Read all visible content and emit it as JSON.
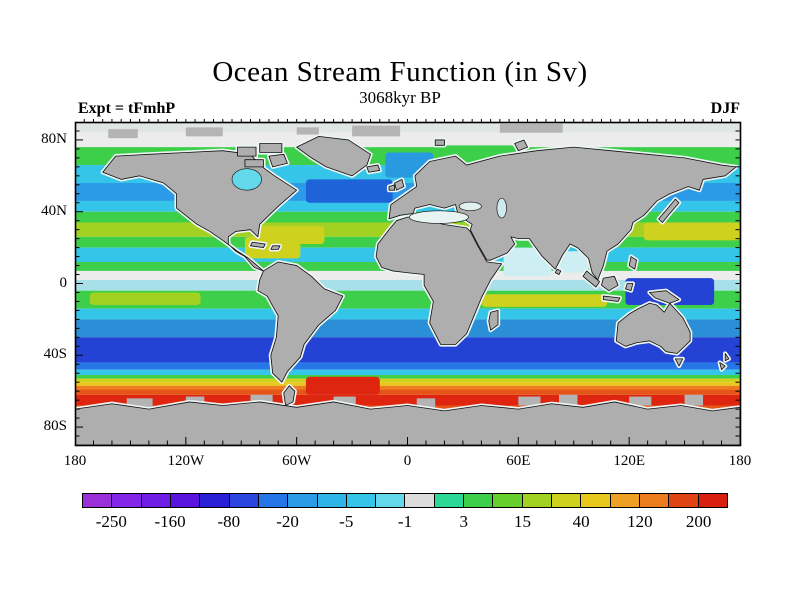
{
  "header": {
    "title": "Ocean Stream Function (in Sv)",
    "subtitle": "3068kyr BP",
    "experiment": "Expt = tFmhP",
    "season": "DJF"
  },
  "axes": {
    "x_ticks": [
      {
        "label": "180",
        "lon": -180
      },
      {
        "label": "120W",
        "lon": -120
      },
      {
        "label": "60W",
        "lon": -60
      },
      {
        "label": "0",
        "lon": 0
      },
      {
        "label": "60E",
        "lon": 60
      },
      {
        "label": "120E",
        "lon": 120
      },
      {
        "label": "180",
        "lon": 180
      }
    ],
    "y_ticks": [
      {
        "label": "80N",
        "lat": 80
      },
      {
        "label": "40N",
        "lat": 40
      },
      {
        "label": "0",
        "lat": 0
      },
      {
        "label": "40S",
        "lat": -40
      },
      {
        "label": "80S",
        "lat": -80
      }
    ]
  },
  "colorbar": {
    "labels": [
      "-250",
      "-160",
      "-80",
      "-20",
      "-5",
      "-1",
      "3",
      "15",
      "40",
      "120",
      "200"
    ],
    "colors": [
      "#9a30d8",
      "#8326e8",
      "#701de6",
      "#5a14e0",
      "#2b1fd8",
      "#2b46e0",
      "#2776e8",
      "#2b9be8",
      "#2fb4e8",
      "#35c5e8",
      "#62d8ea",
      "#dcdcdc",
      "#2bd896",
      "#3ecf4a",
      "#66cf2b",
      "#a3d122",
      "#cfd11f",
      "#e8c81d",
      "#eda024",
      "#ed7c1f",
      "#e04414",
      "#d92010"
    ]
  },
  "chart_data": {
    "type": "heatmap",
    "title": "Ocean Stream Function (in Sv)",
    "subtitle": "3068kyr BP",
    "experiment": "Expt = tFmhP",
    "season": "DJF",
    "units": "Sv",
    "projection": "equirectangular world map, land masked gray",
    "x_axis": {
      "tick_labels": [
        "180",
        "120W",
        "60W",
        "0",
        "60E",
        "120E",
        "180"
      ],
      "range_deg": [
        -180,
        180
      ]
    },
    "y_axis": {
      "tick_labels": [
        "80N",
        "40N",
        "0",
        "40S",
        "80S"
      ],
      "range_deg": [
        -90,
        90
      ]
    },
    "colorbar_values": [
      -250,
      -160,
      -80,
      -20,
      -5,
      -1,
      3,
      15,
      40,
      120,
      200
    ],
    "legend_position": "bottom",
    "grid": false,
    "ocean_bands": [
      {
        "from_lat": 90,
        "to_lat": 84,
        "color": "#e2e5e5",
        "approx_sv": "-1 to 1"
      },
      {
        "from_lat": 84,
        "to_lat": 76,
        "color": "#ececec",
        "approx_sv": "-1 to 1"
      },
      {
        "from_lat": 76,
        "to_lat": 66,
        "color": "#3ecf4a",
        "approx_sv": "3 to 15"
      },
      {
        "from_lat": 66,
        "to_lat": 56,
        "color": "#35c5e8",
        "approx_sv": "-5 to -2"
      },
      {
        "from_lat": 56,
        "to_lat": 46,
        "color": "#2b9be8",
        "approx_sv": "-10 to -5"
      },
      {
        "from_lat": 46,
        "to_lat": 40,
        "color": "#35c5e8",
        "approx_sv": "-5 to -2"
      },
      {
        "from_lat": 40,
        "to_lat": 34,
        "color": "#3ecf4a",
        "approx_sv": "3 to 15"
      },
      {
        "from_lat": 34,
        "to_lat": 26,
        "color": "#a3d122",
        "approx_sv": "25 to 40"
      },
      {
        "from_lat": 26,
        "to_lat": 20,
        "color": "#3ecf4a",
        "approx_sv": "3 to 15"
      },
      {
        "from_lat": 20,
        "to_lat": 12,
        "color": "#35c5e8",
        "approx_sv": "-5 to -2"
      },
      {
        "from_lat": 12,
        "to_lat": 7,
        "color": "#3ecf4a",
        "approx_sv": "3 to 15"
      },
      {
        "from_lat": 7,
        "to_lat": 2,
        "color": "#ececec",
        "approx_sv": "-1 to 1"
      },
      {
        "from_lat": 2,
        "to_lat": -4,
        "color": "#a8e0ea",
        "approx_sv": "-2 to -1"
      },
      {
        "from_lat": -4,
        "to_lat": -14,
        "color": "#3ecf4a",
        "approx_sv": "3 to 15"
      },
      {
        "from_lat": -14,
        "to_lat": -20,
        "color": "#35c5e8",
        "approx_sv": "-5 to -2"
      },
      {
        "from_lat": -20,
        "to_lat": -30,
        "color": "#2b8fd8",
        "approx_sv": "-20 to -10"
      },
      {
        "from_lat": -30,
        "to_lat": -44,
        "color": "#2443d4",
        "approx_sv": "-80 to -40"
      },
      {
        "from_lat": -44,
        "to_lat": -48,
        "color": "#2776e8",
        "approx_sv": "-20 to -10"
      },
      {
        "from_lat": -48,
        "to_lat": -51,
        "color": "#35c5e8",
        "approx_sv": "-5 to -2"
      },
      {
        "from_lat": -51,
        "to_lat": -53,
        "color": "#3ecf4a",
        "approx_sv": "3 to 15"
      },
      {
        "from_lat": -53,
        "to_lat": -55,
        "color": "#cfd11f",
        "approx_sv": "40 to 80"
      },
      {
        "from_lat": -55,
        "to_lat": -57,
        "color": "#e8c81d",
        "approx_sv": "80 to 120"
      },
      {
        "from_lat": -57,
        "to_lat": -59,
        "color": "#ed7c1f",
        "approx_sv": "120 to 160"
      },
      {
        "from_lat": -59,
        "to_lat": -62,
        "color": "#e55616",
        "approx_sv": "160 to 200"
      },
      {
        "from_lat": -62,
        "to_lat": -68,
        "color": "#de2510",
        "approx_sv": "over 200"
      },
      {
        "from_lat": -68,
        "to_lat": -71,
        "color": "#e55616",
        "approx_sv": "160 to 200"
      },
      {
        "from_lat": -71,
        "to_lat": -90,
        "color": "#b4b4b4",
        "approx_sv": "land"
      }
    ],
    "ocean_features": [
      {
        "name": "north-atlantic-subpolar-gyre",
        "shape": "rect",
        "lon_w": -55,
        "lon_e": -8,
        "lat_n": 58,
        "lat_s": 45,
        "color": "#1e63d8",
        "approx_sv": "-40 to -20"
      },
      {
        "name": "nordic-sea",
        "shape": "rect",
        "lon_w": -12,
        "lon_e": 14,
        "lat_n": 73,
        "lat_s": 59,
        "color": "#2a9ae0",
        "approx_sv": "-10 to -5"
      },
      {
        "name": "barents-sea",
        "shape": "rect",
        "lon_w": 16,
        "lon_e": 58,
        "lat_n": 77,
        "lat_s": 68,
        "color": "#3ecf4a",
        "approx_sv": "3 to 15"
      },
      {
        "name": "kuroshio-gyre-core",
        "shape": "rect",
        "lon_w": 128,
        "lon_e": 180,
        "lat_n": 34,
        "lat_s": 24,
        "color": "#cfd11f",
        "approx_sv": "40 to 80"
      },
      {
        "name": "gulf-stream-gyre-core",
        "shape": "rect",
        "lon_w": -80,
        "lon_e": -45,
        "lat_n": 32,
        "lat_s": 22,
        "color": "#cfd11f",
        "approx_sv": "40 to 80"
      },
      {
        "name": "caribbean",
        "shape": "rect",
        "lon_w": -88,
        "lon_e": -58,
        "lat_n": 26,
        "lat_s": 14,
        "color": "#cfd11f",
        "approx_sv": "40 to 80"
      },
      {
        "name": "arabian-sea",
        "shape": "rect",
        "lon_w": 52,
        "lon_e": 78,
        "lat_n": 20,
        "lat_s": 4,
        "color": "#cdeef2",
        "approx_sv": "-1 to 1"
      },
      {
        "name": "bay-of-bengal",
        "shape": "rect",
        "lon_w": 80,
        "lon_e": 98,
        "lat_n": 18,
        "lat_s": 6,
        "color": "#cdeef2",
        "approx_sv": "-1 to 1"
      },
      {
        "name": "south-indian-countercurrent",
        "shape": "rect",
        "lon_w": 40,
        "lon_e": 108,
        "lat_n": -6,
        "lat_s": -13,
        "color": "#cfd11f",
        "approx_sv": "40 to 80"
      },
      {
        "name": "south-pacific-countercurrent",
        "shape": "rect",
        "lon_w": -172,
        "lon_e": -112,
        "lat_n": -5,
        "lat_s": -12,
        "color": "#a3d122",
        "approx_sv": "25 to 40"
      },
      {
        "name": "west-pacific-equatorial-trough",
        "shape": "rect",
        "lon_w": 118,
        "lon_e": 166,
        "lat_n": 3,
        "lat_s": -12,
        "color": "#2443d4",
        "approx_sv": "-80 to -40"
      },
      {
        "name": "scotia-sea-acc-core",
        "shape": "rect",
        "lon_w": -55,
        "lon_e": -15,
        "lat_n": -52,
        "lat_s": -62,
        "color": "#de2510",
        "approx_sv": "over 200"
      }
    ],
    "inland_seas": [
      {
        "name": "hudson-bay",
        "shape": "ellipse",
        "lon": -87,
        "lat": 58,
        "rlon": 8,
        "rlat": 6,
        "color": "#64d9ec",
        "approx_sv": "-2 to -1"
      },
      {
        "name": "mediterranean-sea",
        "shape": "ellipse",
        "lon": 17,
        "lat": 37,
        "rlon": 16,
        "rlat": 3.5,
        "color": "#e8f4f2",
        "approx_sv": "-1 to 1"
      },
      {
        "name": "black-sea",
        "shape": "ellipse",
        "lon": 34,
        "lat": 43,
        "rlon": 6,
        "rlat": 2.4,
        "color": "#dff0ee",
        "approx_sv": "-1 to 1"
      },
      {
        "name": "caspian-sea",
        "shape": "ellipse",
        "lon": 51,
        "lat": 42,
        "rlon": 2.6,
        "rlat": 5.5,
        "color": "#cfeaec",
        "approx_sv": "-1 to 1"
      }
    ]
  }
}
